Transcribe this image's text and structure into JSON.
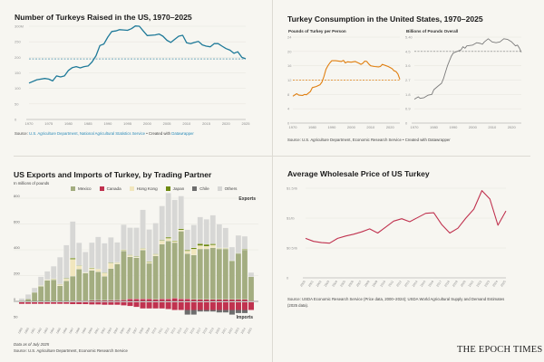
{
  "panel_turkeys": {
    "title": "Number of Turkeys Raised in the US, 1970–2025",
    "source_prefix": "Source:",
    "source_link": "U.S. Agriculture Department, National Agricultural Statistics Service",
    "source_mid": " • Created with ",
    "source_tool": "Datawrapper"
  },
  "panel_consumption": {
    "title": "Turkey Consumption in the United States, 1970–2025",
    "source": "Source: U.S. Agriculture Department, Economic Research Service • Created with Datawrapper"
  },
  "panel_trade": {
    "title": "US Exports and Imports of Turkey, by Trading Partner",
    "subtitle": "In millions of pounds",
    "exports_label": "Exports",
    "imports_label": "Imports",
    "note": "Data as of July 2025",
    "source": "Source: U.S. Agriculture Department, Economic Research Service"
  },
  "panel_price": {
    "title": "Average Wholesale Price of US Turkey",
    "source": "Source: USDA Economic Research Service (Price data, 2000–2024); USDA World Agricultural Supply and Demand Estimates (2025 data)."
  },
  "branding": {
    "logo": "THE EPOCH TIMES"
  },
  "chart_data": [
    {
      "id": "turkeys",
      "type": "line",
      "title": "Number of Turkeys Raised in the US, 1970–2025",
      "color": "#1f7a99",
      "reference_line": 195,
      "xlim": [
        1970,
        2025
      ],
      "ylim": [
        0,
        300
      ],
      "grid": true,
      "x_ticks": [
        "1970",
        "1975",
        "1980",
        "1985",
        "1990",
        "1995",
        "2000",
        "2005",
        "2010",
        "2015",
        "2020",
        "2025"
      ],
      "y_ticks": [
        {
          "v": 0,
          "label": "0"
        },
        {
          "v": 50,
          "label": "50"
        },
        {
          "v": 100,
          "label": "100"
        },
        {
          "v": 150,
          "label": "150"
        },
        {
          "v": 200,
          "label": "200"
        },
        {
          "v": 250,
          "label": "250"
        },
        {
          "v": 300,
          "label": "300M"
        }
      ],
      "x": [
        1970,
        1972,
        1974,
        1975,
        1976,
        1977,
        1978,
        1979,
        1980,
        1981,
        1982,
        1983,
        1984,
        1985,
        1986,
        1987,
        1988,
        1989,
        1990,
        1991,
        1992,
        1993,
        1994,
        1995,
        1996,
        1997,
        1998,
        1999,
        2000,
        2002,
        2003,
        2004,
        2005,
        2006,
        2007,
        2008,
        2009,
        2010,
        2011,
        2012,
        2013,
        2014,
        2015,
        2016,
        2017,
        2018,
        2019,
        2020,
        2021,
        2022,
        2023,
        2024,
        2025
      ],
      "y": [
        117,
        128,
        132,
        130,
        124,
        140,
        137,
        140,
        158,
        167,
        170,
        166,
        170,
        172,
        185,
        205,
        238,
        243,
        265,
        283,
        285,
        289,
        288,
        287,
        292,
        301,
        300,
        285,
        270,
        272,
        275,
        268,
        255,
        248,
        258,
        268,
        271,
        247,
        244,
        248,
        251,
        240,
        236,
        234,
        244,
        244,
        236,
        228,
        223,
        213,
        218,
        200,
        195
      ]
    },
    {
      "id": "per_person",
      "type": "line",
      "subtitle": "Pounds of Turkey per Person",
      "color": "#e07f10",
      "reference_line": 12,
      "xlim": [
        1970,
        2025
      ],
      "ylim": [
        0,
        24
      ],
      "grid": true,
      "x_ticks": [
        "1970",
        "1980",
        "1990",
        "2000",
        "2010",
        "2020"
      ],
      "y_ticks": [
        {
          "v": 0,
          "label": "0"
        },
        {
          "v": 4,
          "label": "4"
        },
        {
          "v": 8,
          "label": "8"
        },
        {
          "v": 12,
          "label": "12"
        },
        {
          "v": 16,
          "label": "16"
        },
        {
          "v": 20,
          "label": "20"
        },
        {
          "v": 24,
          "label": "24"
        }
      ],
      "x": [
        1970,
        1972,
        1973,
        1975,
        1976,
        1977,
        1979,
        1980,
        1982,
        1984,
        1985,
        1986,
        1987,
        1988,
        1989,
        1990,
        1992,
        1995,
        1996,
        1997,
        1998,
        2000,
        2002,
        2004,
        2005,
        2006,
        2007,
        2008,
        2009,
        2010,
        2012,
        2014,
        2015,
        2016,
        2017,
        2018,
        2019,
        2020,
        2021,
        2022,
        2023,
        2024,
        2025
      ],
      "y": [
        7.5,
        8.2,
        7.8,
        7.7,
        8.0,
        7.9,
        8.8,
        9.9,
        10.2,
        10.7,
        11.5,
        13.0,
        15.0,
        16.0,
        16.8,
        17.4,
        17.4,
        17.2,
        17.5,
        16.8,
        17.1,
        17.0,
        17.2,
        16.7,
        16.4,
        16.7,
        17.3,
        17.2,
        16.5,
        16.0,
        15.8,
        15.7,
        15.8,
        16.4,
        16.2,
        16.0,
        15.8,
        15.5,
        15.2,
        14.6,
        14.4,
        13.7,
        12.2
      ]
    },
    {
      "id": "overall",
      "type": "line",
      "subtitle": "Billions of Pounds Overall",
      "color": "#7a7a7a",
      "reference_line": 4.5,
      "xlim": [
        1970,
        2025
      ],
      "ylim": [
        0,
        5.4
      ],
      "grid": true,
      "x_ticks": [
        "1970",
        "1980",
        "1990",
        "2000",
        "2010",
        "2020"
      ],
      "y_ticks": [
        {
          "v": 0,
          "label": "0"
        },
        {
          "v": 0.9,
          "label": "0.9"
        },
        {
          "v": 1.8,
          "label": "1.8"
        },
        {
          "v": 2.7,
          "label": "2.7"
        },
        {
          "v": 3.6,
          "label": "3.6"
        },
        {
          "v": 4.5,
          "label": "4.5"
        },
        {
          "v": 5.4,
          "label": "5.40"
        }
      ],
      "x": [
        1970,
        1972,
        1973,
        1975,
        1977,
        1979,
        1980,
        1982,
        1984,
        1985,
        1986,
        1987,
        1988,
        1989,
        1990,
        1992,
        1994,
        1995,
        1996,
        1997,
        2000,
        2002,
        2004,
        2005,
        2006,
        2008,
        2010,
        2012,
        2014,
        2016,
        2018,
        2020,
        2022,
        2023,
        2024,
        2025
      ],
      "y": [
        1.5,
        1.65,
        1.55,
        1.6,
        1.75,
        1.8,
        2.1,
        2.3,
        2.5,
        2.8,
        3.2,
        3.6,
        3.9,
        4.2,
        4.4,
        4.5,
        4.6,
        4.8,
        4.7,
        4.85,
        4.9,
        5.05,
        5.0,
        4.95,
        5.1,
        5.3,
        5.1,
        5.05,
        5.1,
        5.3,
        5.25,
        5.1,
        4.85,
        4.9,
        4.7,
        4.45
      ]
    },
    {
      "id": "trade",
      "type": "bar",
      "stacked": true,
      "title": "US Exports and Imports of Turkey, by Trading Partner",
      "ylabel": "In millions of pounds",
      "legend_position": "top",
      "y_ticks": [
        {
          "v": 0,
          "label": "0"
        },
        {
          "v": 200,
          "label": "200"
        },
        {
          "v": 400,
          "label": "400"
        },
        {
          "v": 600,
          "label": "600"
        },
        {
          "v": 800,
          "label": "800"
        }
      ],
      "imports_tick": {
        "v": -50,
        "label": "50"
      },
      "categories": [
        "1989",
        "1990",
        "1991",
        "1992",
        "1993",
        "1994",
        "1995",
        "1996",
        "1997",
        "1998",
        "1999",
        "2000",
        "2001",
        "2002",
        "2003",
        "2004",
        "2005",
        "2006",
        "2007",
        "2008",
        "2009",
        "2010",
        "2011",
        "2012",
        "2013",
        "2014",
        "2015",
        "2016",
        "2017",
        "2018",
        "2019",
        "2020",
        "2021",
        "2022",
        "2023",
        "2024",
        "2025"
      ],
      "export_series": [
        {
          "name": "Canada",
          "color": "#c0324f",
          "values": [
            0,
            0,
            0,
            0,
            0,
            0,
            0,
            0,
            5,
            5,
            5,
            8,
            8,
            8,
            10,
            10,
            12,
            20,
            20,
            20,
            20,
            15,
            20,
            20,
            25,
            20,
            20,
            15,
            15,
            15,
            15,
            15,
            15,
            15,
            15,
            15,
            5
          ]
        },
        {
          "name": "Mexico",
          "color": "#a3ad80",
          "values": [
            5,
            19,
            70,
            117,
            163,
            168,
            121,
            159,
            191,
            245,
            214,
            233,
            221,
            186,
            245,
            280,
            380,
            326,
            319,
            378,
            275,
            338,
            424,
            448,
            431,
            524,
            350,
            345,
            392,
            392,
            401,
            392,
            392,
            298,
            357,
            385,
            186
          ]
        },
        {
          "name": "Hong Kong",
          "color": "#f1e6bd",
          "values": [
            0,
            0,
            0,
            5,
            5,
            5,
            10,
            15,
            130,
            25,
            5,
            15,
            20,
            25,
            40,
            10,
            5,
            10,
            5,
            10,
            10,
            10,
            25,
            20,
            10,
            10,
            20,
            45,
            25,
            20,
            20,
            5,
            5,
            0,
            0,
            0,
            0
          ]
        },
        {
          "name": "Japan",
          "color": "#6e8a12",
          "values": [
            0,
            0,
            0,
            3,
            3,
            3,
            3,
            5,
            10,
            5,
            3,
            5,
            3,
            5,
            5,
            3,
            5,
            5,
            5,
            5,
            5,
            5,
            5,
            10,
            5,
            10,
            8,
            10,
            15,
            15,
            10,
            3,
            3,
            3,
            3,
            5,
            0
          ]
        },
        {
          "name": "Others",
          "color": "#d7d7d5",
          "values": [
            18,
            35,
            35,
            66,
            62,
            97,
            209,
            257,
            284,
            175,
            156,
            195,
            248,
            227,
            197,
            155,
            193,
            211,
            223,
            297,
            248,
            239,
            266,
            342,
            316,
            253,
            158,
            178,
            207,
            195,
            222,
            183,
            155,
            105,
            137,
            100,
            33
          ]
        }
      ],
      "import_series": [
        {
          "name": "Canada",
          "color": "#c0324f",
          "values": [
            -5,
            -5,
            -5,
            -5,
            -5,
            -5,
            -5,
            -5,
            -6,
            -6,
            -6,
            -7,
            -7,
            -8,
            -8,
            -8,
            -10,
            -12,
            -15,
            -20,
            -20,
            -20,
            -20,
            -22,
            -25,
            -25,
            -25,
            -25,
            -25,
            -25,
            -25,
            -25,
            -25,
            -25,
            -25,
            -25,
            -25
          ]
        },
        {
          "name": "Chile",
          "color": "#6d6d6d",
          "values": [
            0,
            0,
            0,
            0,
            0,
            0,
            0,
            0,
            0,
            0,
            0,
            0,
            0,
            0,
            0,
            0,
            0,
            0,
            0,
            0,
            0,
            0,
            0,
            0,
            0,
            0,
            -15,
            -15,
            -5,
            -5,
            -5,
            -8,
            -8,
            -15,
            -10,
            -10,
            0
          ]
        }
      ],
      "legend": [
        {
          "name": "Mexico",
          "color": "#a3ad80"
        },
        {
          "name": "Canada",
          "color": "#c0324f"
        },
        {
          "name": "Hong Kong",
          "color": "#f1e6bd"
        },
        {
          "name": "Japan",
          "color": "#6e8a12"
        },
        {
          "name": "Chile",
          "color": "#6d6d6d"
        },
        {
          "name": "Others",
          "color": "#d7d7d5"
        }
      ]
    },
    {
      "id": "price",
      "type": "line",
      "title": "Average Wholesale Price of US Turkey",
      "color": "#c0324f",
      "xlim": [
        2000,
        2025
      ],
      "ylim": [
        0,
        1.5
      ],
      "grid": true,
      "y_ticks": [
        {
          "v": 0,
          "label": "0"
        },
        {
          "v": 0.5,
          "label": "$0.5/lb"
        },
        {
          "v": 1.0,
          "label": "$1/lb"
        },
        {
          "v": 1.5,
          "label": "$1.5/lb"
        }
      ],
      "x": [
        2000,
        2001,
        2002,
        2003,
        2004,
        2005,
        2006,
        2007,
        2008,
        2009,
        2010,
        2011,
        2012,
        2013,
        2014,
        2015,
        2016,
        2017,
        2018,
        2019,
        2020,
        2021,
        2022,
        2023,
        2024,
        2025
      ],
      "y": [
        0.66,
        0.61,
        0.59,
        0.58,
        0.66,
        0.7,
        0.73,
        0.77,
        0.82,
        0.75,
        0.85,
        0.95,
        0.99,
        0.94,
        1.01,
        1.08,
        1.09,
        0.89,
        0.75,
        0.83,
        1.0,
        1.15,
        1.46,
        1.32,
        0.88,
        1.12
      ]
    }
  ]
}
